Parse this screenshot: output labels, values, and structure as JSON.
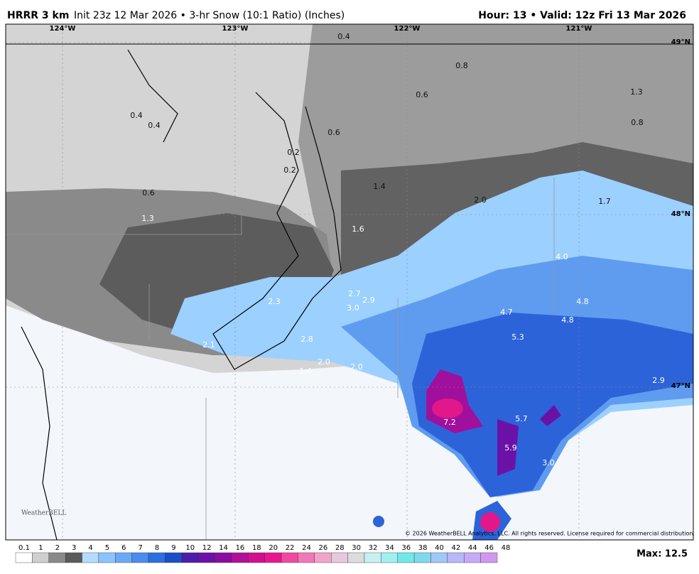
{
  "header": {
    "model": "HRRR 3 km",
    "description": "Init 23z 12 Mar 2026 • 3-hr Snow (10:1 Ratio) (Inches)",
    "valid": "Hour: 13 • Valid: 12z Fri 13 Mar 2026"
  },
  "map": {
    "longitudes": [
      "124°W",
      "123°W",
      "122°W",
      "121°W"
    ],
    "latitudes": [
      "49°N",
      "48°N",
      "47°N"
    ],
    "point_labels": [
      "0.4",
      "0.8",
      "0.6",
      "1.3",
      "0.8",
      "0.4",
      "0.4",
      "0.6",
      "0.2",
      "0.2",
      "1.4",
      "0.6",
      "2.0",
      "1.7",
      "1.3",
      "1.6",
      "4.0",
      "2.7",
      "2.9",
      "2.3",
      "3.0",
      "4.8",
      "4.7",
      "4.8",
      "5.3",
      "2.1",
      "2.8",
      "2.0",
      "2.0",
      "1.4",
      "2.9",
      "5.7",
      "7.2",
      "5.9",
      "3.0"
    ],
    "copyright": "© 2026 WeatherBELL Analytics, LLC. All rights reserved. License required for commercial distribution.",
    "logo": "WeatherBELL"
  },
  "colorbar": {
    "labels": [
      "0.1",
      "1",
      "2",
      "3",
      "4",
      "5",
      "6",
      "7",
      "8",
      "9",
      "10",
      "12",
      "14",
      "16",
      "18",
      "20",
      "22",
      "24",
      "26",
      "28",
      "30",
      "32",
      "34",
      "36",
      "38",
      "40",
      "42",
      "44",
      "46",
      "48"
    ],
    "colors": [
      "#ffffff",
      "#cfcfcf",
      "#8a8a8a",
      "#5a5a5a",
      "#b5dcff",
      "#8cc4ff",
      "#6aaaf5",
      "#4a8cf0",
      "#2c6fe0",
      "#1a4fc8",
      "#4a1ea8",
      "#6a12a8",
      "#8a0ca0",
      "#b0109a",
      "#d01090",
      "#e8188c",
      "#f04aa0",
      "#f078b8",
      "#f0a4cc",
      "#e8c8dc",
      "#dcdcdc",
      "#c8f0f0",
      "#a0f0f0",
      "#70e8e8",
      "#80d8f0",
      "#a0c8f8",
      "#b8b8f8",
      "#c8a8f8",
      "#d098f0"
    ],
    "max": "Max: 12.5"
  }
}
